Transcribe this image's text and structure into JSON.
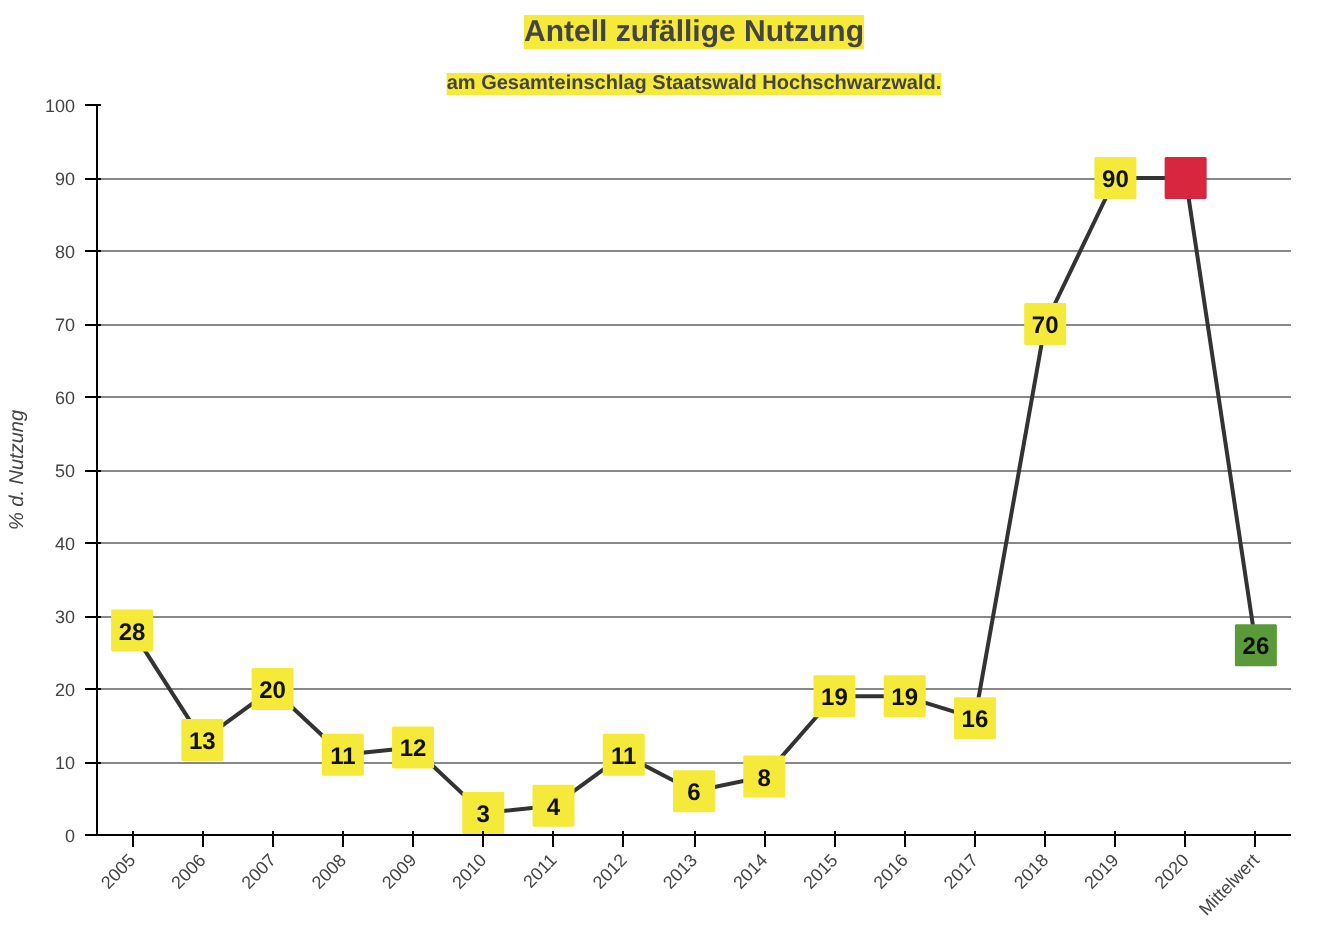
{
  "chart_data": {
    "type": "line",
    "title": "Antell zufällige Nutzung",
    "subtitle": "am Gesamteinschlag Staatswald Hochschwarzwald.",
    "ylabel": "% d. Nutzung",
    "categories": [
      "2005",
      "2006",
      "2007",
      "2008",
      "2009",
      "2010",
      "2011",
      "2012",
      "2013",
      "2014",
      "2015",
      "2016",
      "2017",
      "2018",
      "2019",
      "2020",
      "Mittelwert"
    ],
    "series": [
      {
        "color": "#333333",
        "values": [
          28,
          13,
          20,
          11,
          12,
          3,
          4,
          11,
          6,
          8,
          19,
          19,
          16,
          70,
          90,
          90,
          26
        ],
        "colors": [
          "#f5ea3a",
          "#f5ea3a",
          "#f5ea3a",
          "#f5ea3a",
          "#f5ea3a",
          "#f5ea3a",
          "#f5ea3a",
          "#f5ea3a",
          "#f5ea3a",
          "#f5ea3a",
          "#f5ea3a",
          "#f5ea3a",
          "#f5ea3a",
          "#f5ea3a",
          "#f5ea3a",
          "#d7263d",
          "#5a9a3a"
        ],
        "value_labels": [
          "28",
          "13",
          "20",
          "11",
          "12",
          "3",
          "4",
          "11",
          "6",
          "8",
          "19",
          "19",
          "16",
          "70",
          "90",
          null,
          "26"
        ]
      }
    ],
    "ylim": [
      0,
      100
    ],
    "yticks": [
      0,
      10,
      20,
      30,
      40,
      50,
      60,
      70,
      80,
      90,
      100
    ],
    "grid": "y",
    "marker": "square"
  }
}
